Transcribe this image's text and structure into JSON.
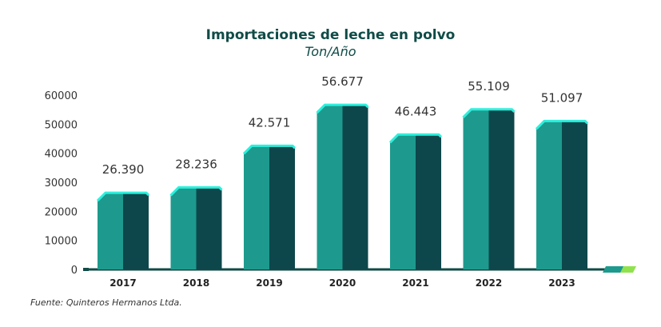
{
  "colors": {
    "front": "#1d9a8d",
    "side": "#0d474b",
    "top": "#2cf0dd",
    "text": "#333333",
    "title": "#0f4b47",
    "axis": "#0f4b47",
    "accent_green": "#8fe24c"
  },
  "chart_data": {
    "type": "bar",
    "title": "Importaciones de leche en polvo",
    "subtitle": "Ton/Año",
    "categories": [
      "2017",
      "2018",
      "2019",
      "2020",
      "2021",
      "2022",
      "2023"
    ],
    "values": [
      26390,
      28236,
      42571,
      56677,
      46443,
      55109,
      51097
    ],
    "value_labels": [
      "26.390",
      "28.236",
      "42.571",
      "56.677",
      "46.443",
      "55.109",
      "51.097"
    ],
    "yticks": [
      0,
      10000,
      20000,
      30000,
      40000,
      50000,
      60000
    ],
    "ytick_labels": [
      "0",
      "10000",
      "20000",
      "30000",
      "40000",
      "50000",
      "60000"
    ],
    "ylim": [
      0,
      60000
    ],
    "xlabel": "",
    "ylabel": "",
    "grid": false
  },
  "source": "Fuente: Quinteros Hermanos Ltda."
}
